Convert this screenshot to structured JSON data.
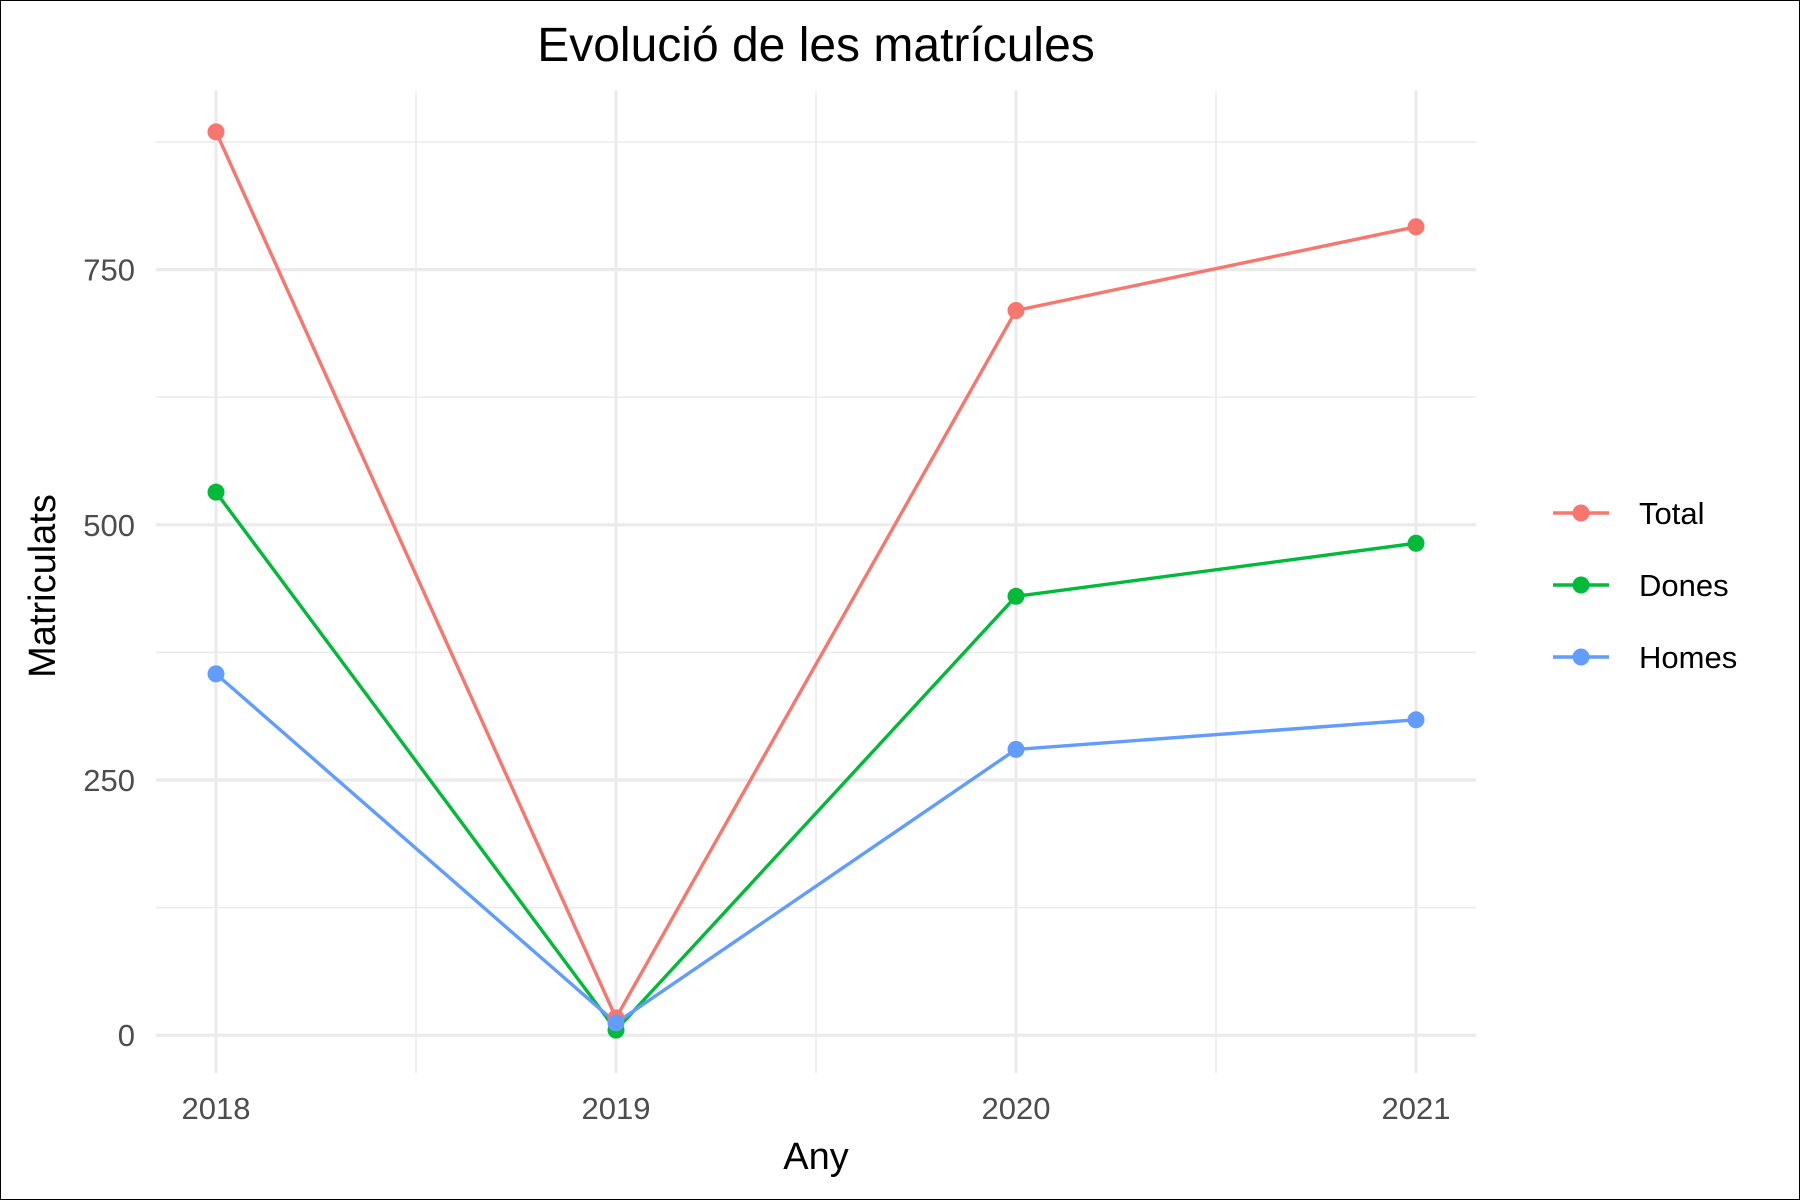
{
  "chart_data": {
    "type": "line",
    "title": "Evolució de les matrícules",
    "xlabel": "Any",
    "ylabel": "Matriculats",
    "x": [
      2018,
      2019,
      2020,
      2021
    ],
    "x_tick_labels": [
      "2018",
      "2019",
      "2020",
      "2021"
    ],
    "xlim": [
      2017.85,
      2021.15
    ],
    "ylim": [
      -37,
      925
    ],
    "y_ticks": [
      0,
      250,
      500,
      750
    ],
    "y_tick_labels": [
      "0",
      "250",
      "500",
      "750"
    ],
    "grid": true,
    "legend_position": "right",
    "series": [
      {
        "name": "Total",
        "color": "#F8766D",
        "values": [
          885,
          17,
          710,
          792
        ]
      },
      {
        "name": "Dones",
        "color": "#00BA38",
        "values": [
          532,
          5,
          430,
          482
        ]
      },
      {
        "name": "Homes",
        "color": "#619CFF",
        "values": [
          354,
          12,
          280,
          309
        ]
      }
    ]
  }
}
